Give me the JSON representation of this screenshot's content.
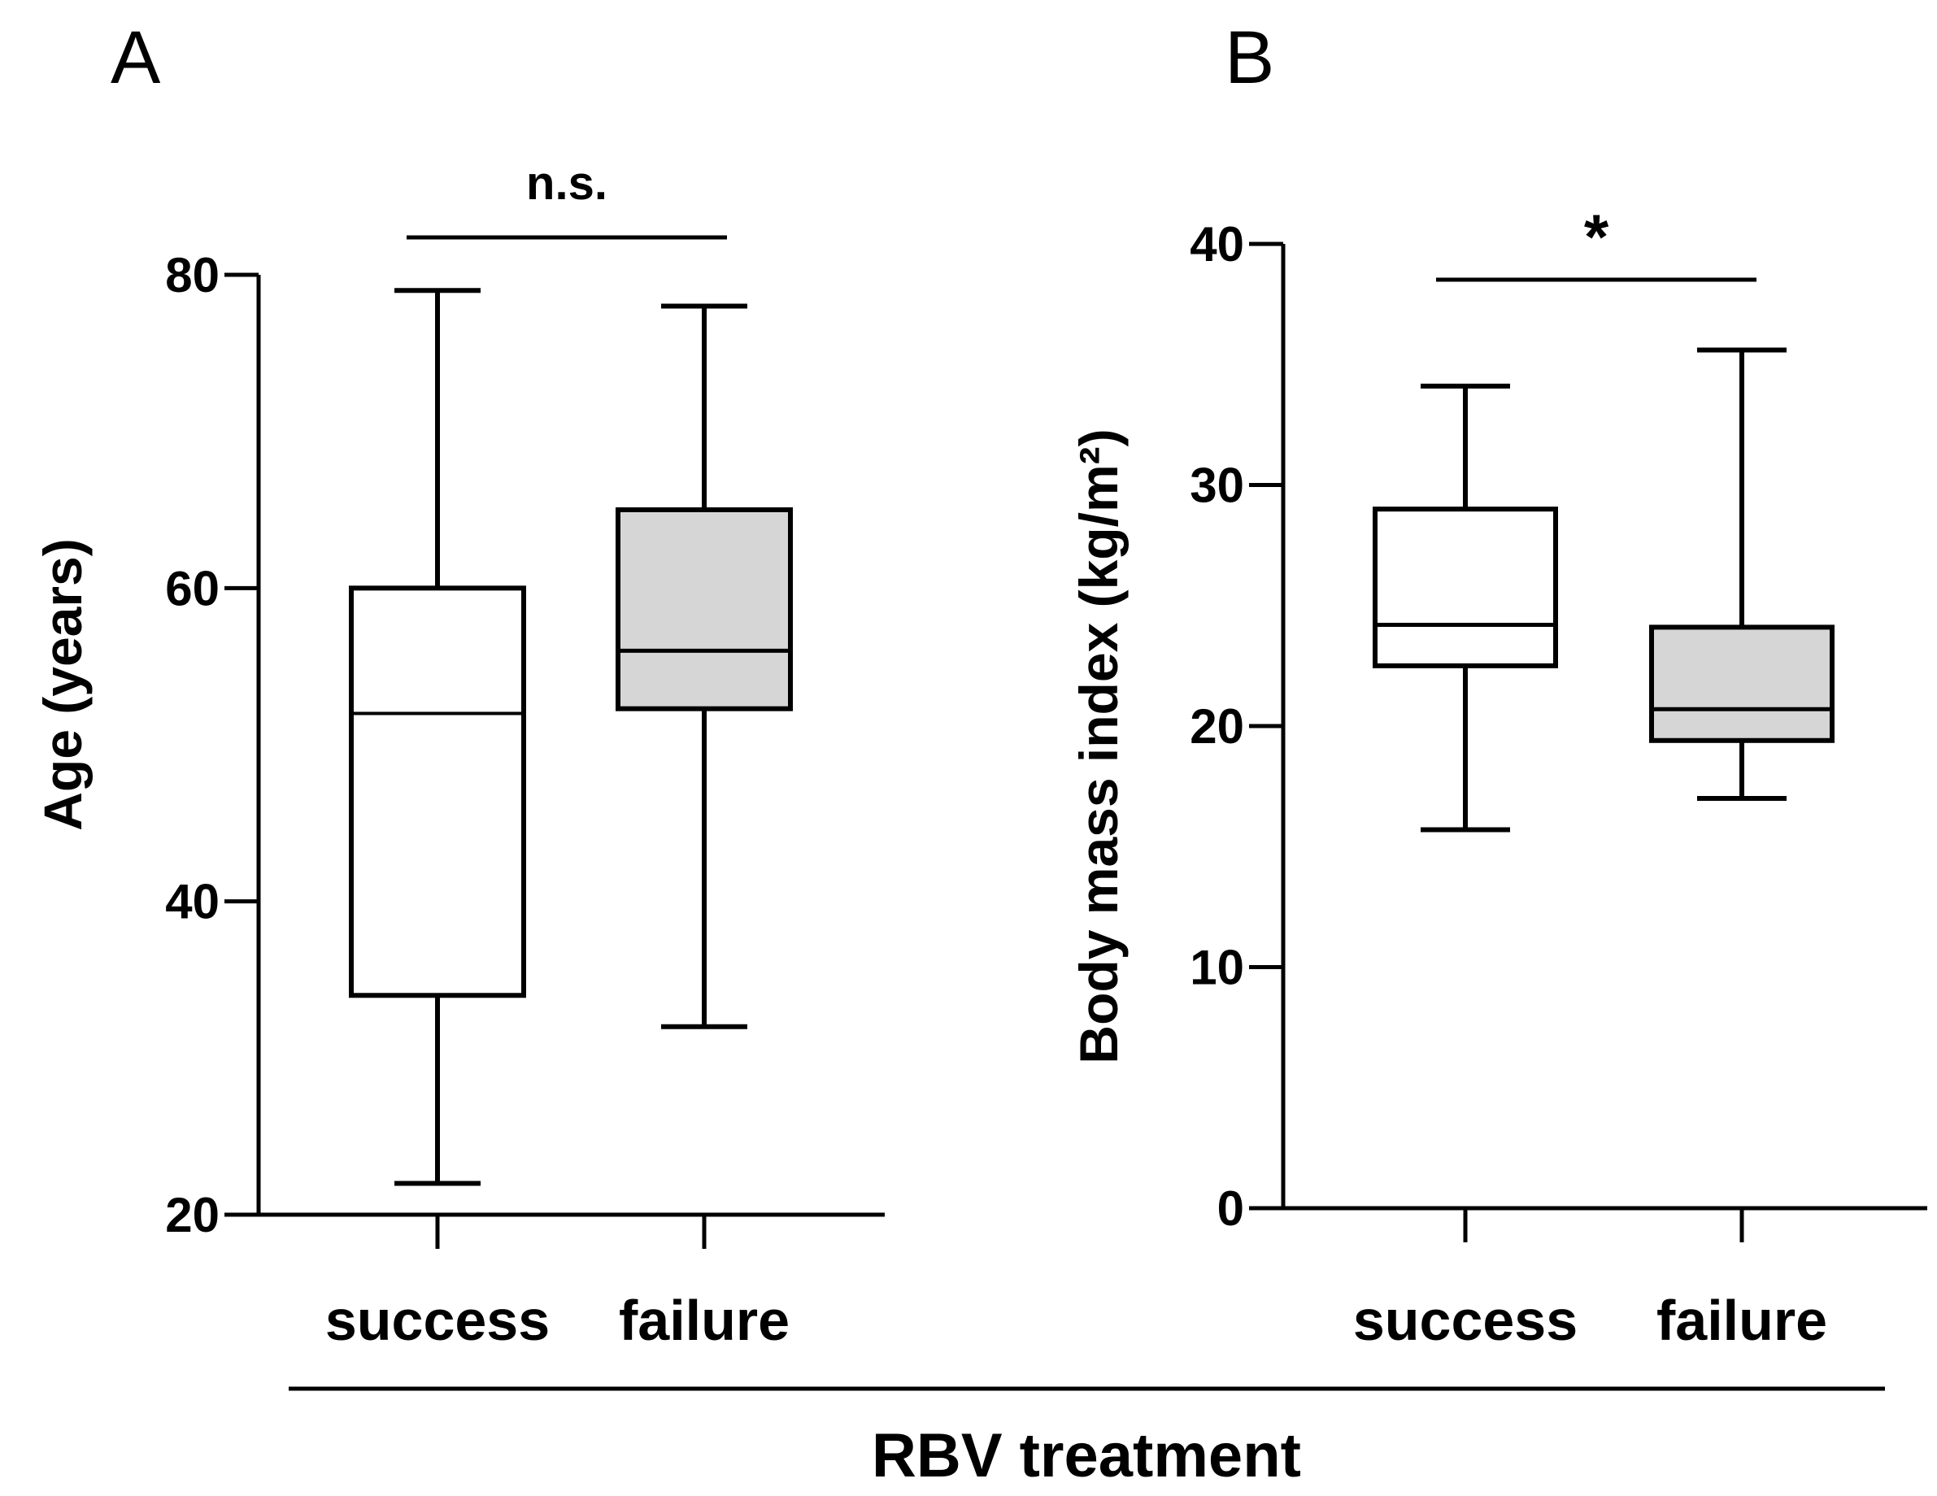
{
  "figure": {
    "group_label": "RBV treatment"
  },
  "chart_data": [
    {
      "panel": "A",
      "type": "box",
      "ylabel": "Age (years)",
      "ylim": [
        20,
        80
      ],
      "yticks": [
        20,
        40,
        60,
        80
      ],
      "categories": [
        "success",
        "failure"
      ],
      "boxes": [
        {
          "name": "success",
          "whisker_low": 22,
          "q1": 34,
          "median": 52,
          "q3": 60,
          "whisker_high": 79,
          "fill": "#ffffff"
        },
        {
          "name": "failure",
          "whisker_low": 32,
          "q1": 52.3,
          "median": 56,
          "q3": 65,
          "whisker_high": 78,
          "fill": "#d6d6d6"
        }
      ],
      "significance": {
        "label": "n.s.",
        "between": [
          "success",
          "failure"
        ]
      }
    },
    {
      "panel": "B",
      "type": "box",
      "ylabel": "Body mass index (kg/m²)",
      "ylim": [
        0,
        40
      ],
      "yticks": [
        0,
        10,
        20,
        30,
        40
      ],
      "categories": [
        "success",
        "failure"
      ],
      "boxes": [
        {
          "name": "success",
          "whisker_low": 15.7,
          "q1": 22.5,
          "median": 24.2,
          "q3": 29,
          "whisker_high": 34.1,
          "fill": "#ffffff"
        },
        {
          "name": "failure",
          "whisker_low": 17,
          "q1": 19.4,
          "median": 20.7,
          "q3": 24.1,
          "whisker_high": 35.6,
          "fill": "#d6d6d6"
        }
      ],
      "significance": {
        "label": "*",
        "between": [
          "success",
          "failure"
        ]
      }
    }
  ]
}
